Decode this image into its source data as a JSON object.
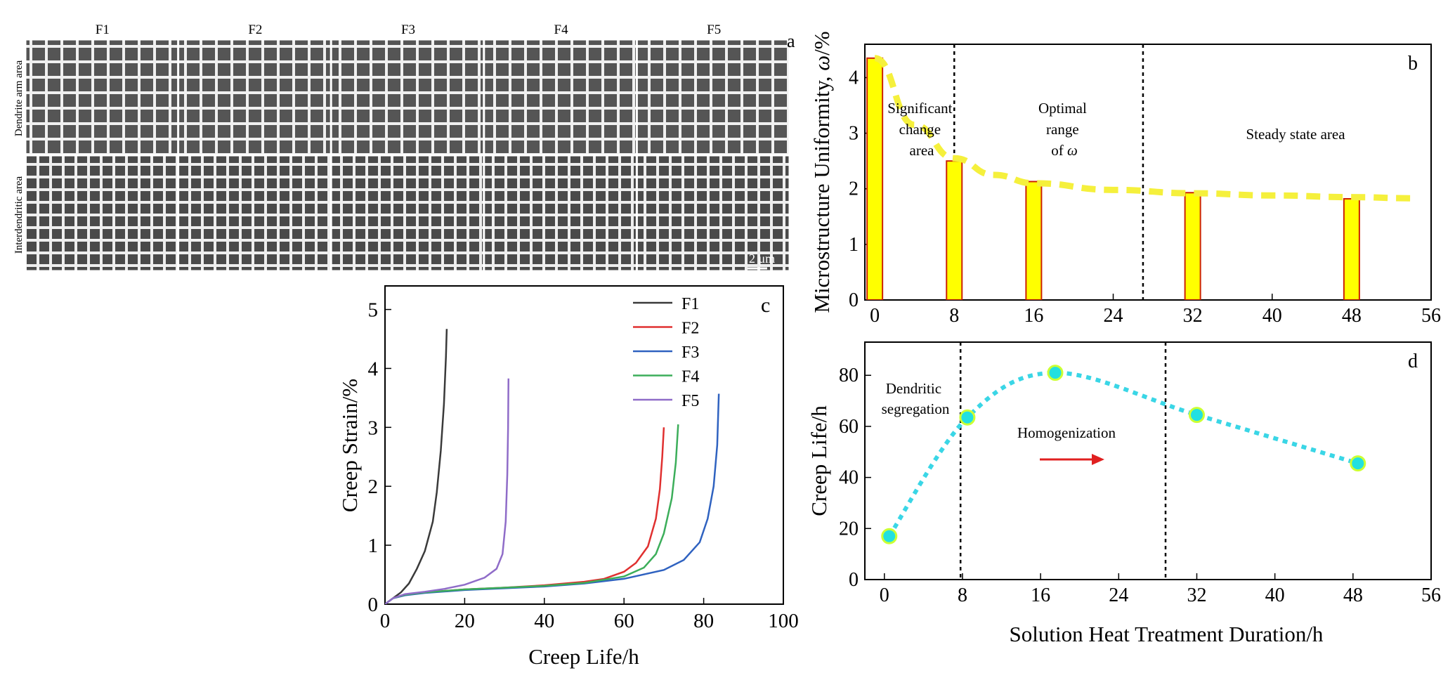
{
  "panel_a": {
    "tag": "a",
    "columns": [
      "F1",
      "F2",
      "F3",
      "F4",
      "F5"
    ],
    "row_labels": [
      "Dendrite arm area",
      "Interdendritic area"
    ],
    "scale_bar": "2 μm"
  },
  "chart_data": [
    {
      "id": "b",
      "tag": "b",
      "type": "bar",
      "ylabel_main": "Microstructure Uniformity, ",
      "ylabel_omega": "ω",
      "ylabel_unit": "/%",
      "x": [
        0,
        8,
        16,
        32,
        48
      ],
      "values": [
        4.35,
        2.5,
        2.13,
        1.93,
        1.82
      ],
      "trend": [
        [
          0,
          4.35
        ],
        [
          4,
          3.15
        ],
        [
          8,
          2.55
        ],
        [
          12,
          2.25
        ],
        [
          16,
          2.1
        ],
        [
          24,
          1.98
        ],
        [
          32,
          1.92
        ],
        [
          40,
          1.88
        ],
        [
          48,
          1.85
        ],
        [
          54,
          1.83
        ]
      ],
      "xlim": [
        -1,
        56
      ],
      "ylim": [
        0,
        4.6
      ],
      "xticks": [
        0,
        8,
        16,
        24,
        32,
        40,
        48,
        56
      ],
      "yticks": [
        0,
        1,
        2,
        3,
        4
      ],
      "dividers": [
        8,
        27
      ],
      "annotations": {
        "sig": [
          "Significant",
          "change",
          "area"
        ],
        "opt": [
          "Optimal",
          "range",
          "of "
        ],
        "opt_omega": "ω",
        "steady": "Steady state area"
      },
      "colors": {
        "bar_fill": "#ffff00",
        "bar_edge": "#cc2200",
        "trend": "#f5f03c"
      }
    },
    {
      "id": "c",
      "tag": "c",
      "type": "line",
      "xlabel": "Creep Life/h",
      "ylabel": "Creep Strain/%",
      "xlim": [
        0,
        100
      ],
      "ylim": [
        0,
        5.4
      ],
      "xticks": [
        0,
        20,
        40,
        60,
        80,
        100
      ],
      "yticks": [
        0,
        1,
        2,
        3,
        4,
        5
      ],
      "series": [
        {
          "name": "F1",
          "color": "#3a3a3a",
          "points": [
            [
              0,
              0
            ],
            [
              1,
              0.05
            ],
            [
              2,
              0.1
            ],
            [
              4,
              0.2
            ],
            [
              6,
              0.35
            ],
            [
              8,
              0.6
            ],
            [
              10,
              0.9
            ],
            [
              12,
              1.4
            ],
            [
              13,
              1.9
            ],
            [
              14,
              2.6
            ],
            [
              14.8,
              3.4
            ],
            [
              15.3,
              4.2
            ],
            [
              15.5,
              4.67
            ]
          ]
        },
        {
          "name": "F2",
          "color": "#e03030",
          "points": [
            [
              0,
              0
            ],
            [
              2,
              0.1
            ],
            [
              5,
              0.16
            ],
            [
              10,
              0.2
            ],
            [
              20,
              0.25
            ],
            [
              30,
              0.28
            ],
            [
              40,
              0.32
            ],
            [
              50,
              0.38
            ],
            [
              55,
              0.43
            ],
            [
              60,
              0.55
            ],
            [
              63,
              0.7
            ],
            [
              66,
              0.98
            ],
            [
              68,
              1.45
            ],
            [
              69,
              1.95
            ],
            [
              69.6,
              2.5
            ],
            [
              70,
              3.0
            ]
          ]
        },
        {
          "name": "F3",
          "color": "#2f62c0",
          "points": [
            [
              0,
              0
            ],
            [
              2,
              0.1
            ],
            [
              5,
              0.15
            ],
            [
              10,
              0.19
            ],
            [
              20,
              0.24
            ],
            [
              30,
              0.27
            ],
            [
              40,
              0.3
            ],
            [
              50,
              0.35
            ],
            [
              60,
              0.43
            ],
            [
              70,
              0.58
            ],
            [
              75,
              0.75
            ],
            [
              79,
              1.05
            ],
            [
              81,
              1.45
            ],
            [
              82.5,
              2.0
            ],
            [
              83.4,
              2.7
            ],
            [
              83.8,
              3.57
            ]
          ]
        },
        {
          "name": "F4",
          "color": "#3cae5a",
          "points": [
            [
              0,
              0
            ],
            [
              2,
              0.1
            ],
            [
              5,
              0.16
            ],
            [
              10,
              0.2
            ],
            [
              20,
              0.25
            ],
            [
              30,
              0.28
            ],
            [
              40,
              0.31
            ],
            [
              50,
              0.36
            ],
            [
              60,
              0.47
            ],
            [
              65,
              0.62
            ],
            [
              68,
              0.85
            ],
            [
              70,
              1.2
            ],
            [
              72,
              1.8
            ],
            [
              73,
              2.4
            ],
            [
              73.6,
              3.05
            ]
          ]
        },
        {
          "name": "F5",
          "color": "#8f6cc8",
          "points": [
            [
              0,
              0
            ],
            [
              2,
              0.1
            ],
            [
              5,
              0.17
            ],
            [
              10,
              0.21
            ],
            [
              15,
              0.26
            ],
            [
              20,
              0.33
            ],
            [
              25,
              0.45
            ],
            [
              28,
              0.6
            ],
            [
              29.5,
              0.85
            ],
            [
              30.3,
              1.4
            ],
            [
              30.7,
              2.2
            ],
            [
              30.9,
              3.0
            ],
            [
              31,
              3.83
            ]
          ]
        }
      ]
    },
    {
      "id": "d",
      "tag": "d",
      "type": "line",
      "xlabel": "Solution Heat Treatment Duration/h",
      "ylabel": "Creep Life/h",
      "x": [
        0.5,
        8.5,
        17.5,
        32,
        48.5
      ],
      "values": [
        17,
        63.5,
        81,
        64.5,
        45.5
      ],
      "xlim": [
        -2,
        56
      ],
      "ylim": [
        0,
        93
      ],
      "xticks": [
        0,
        8,
        16,
        24,
        32,
        40,
        48,
        56
      ],
      "yticks": [
        0,
        20,
        40,
        60,
        80
      ],
      "dividers": [
        7.8,
        28.8
      ],
      "annotations": {
        "dend": [
          "Dendritic",
          "segregation"
        ],
        "homog": "Homogenization"
      },
      "colors": {
        "line": "#3ad6e6",
        "marker_fill": "#22e0e0",
        "marker_edge": "#ccff33",
        "arrow": "#e02020"
      }
    }
  ]
}
